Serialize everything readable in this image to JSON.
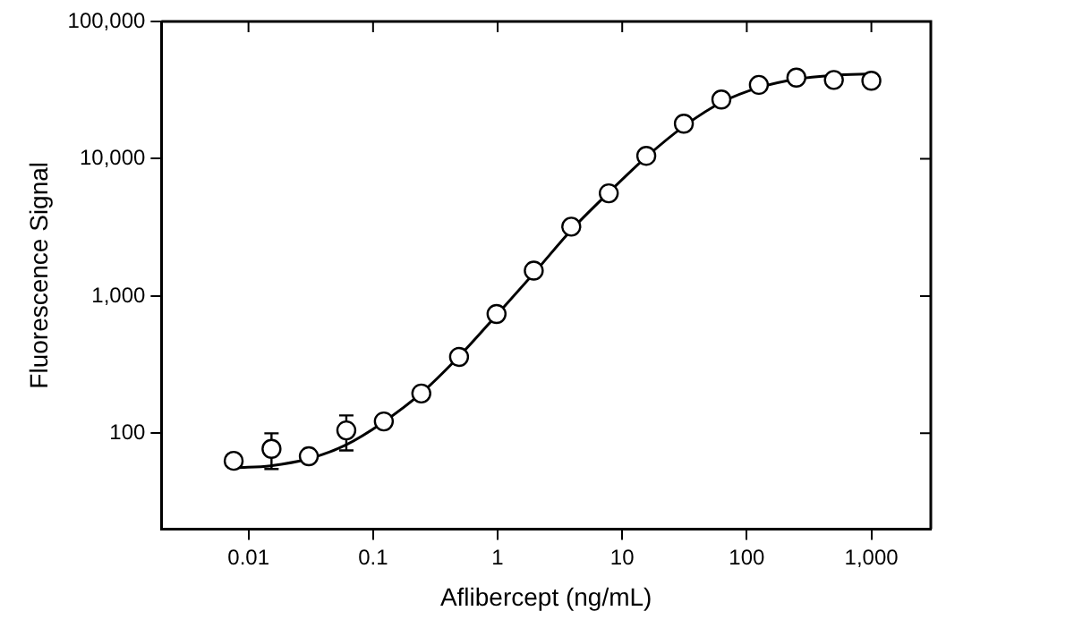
{
  "chart_data": {
    "type": "scatter",
    "xlabel": "Aflibercept (ng/mL)",
    "ylabel": "Fluorescence Signal",
    "log": "xy",
    "grid": false,
    "legend": false,
    "marker": "circle",
    "xlim": [
      0.002,
      3000
    ],
    "ylim": [
      20,
      100000
    ],
    "xticks": [
      0.01,
      0.1,
      1,
      10,
      100,
      {
        "value": 1000,
        "label": "1,000"
      }
    ],
    "yticks": [
      100,
      {
        "value": 1000,
        "label": "1,000"
      },
      {
        "value": 10000,
        "label": "10,000"
      },
      {
        "value": 100000,
        "label": "100,000"
      }
    ],
    "series": [
      {
        "color": "#000000",
        "x": [
          0.0076,
          0.0153,
          0.0305,
          0.061,
          0.122,
          0.244,
          0.49,
          0.98,
          1.95,
          3.9,
          7.8,
          15.6,
          31.25,
          62.5,
          125,
          250,
          500,
          1000
        ],
        "values": [
          63,
          77,
          68,
          105,
          122,
          195,
          360,
          740,
          1530,
          3200,
          5600,
          10500,
          18000,
          27000,
          34500,
          39000,
          37500,
          37000
        ],
        "errors": [
          null,
          [
            55,
            100
          ],
          null,
          [
            75,
            135
          ],
          null,
          null,
          null,
          null,
          null,
          null,
          null,
          null,
          null,
          null,
          null,
          null,
          null,
          null
        ]
      },
      {
        "type": "line",
        "color": "#000000",
        "marker": "none",
        "line_style": "solid",
        "x": [
          0.008,
          0.015,
          0.03,
          0.06,
          0.12,
          0.25,
          0.5,
          1,
          2,
          4,
          8,
          16,
          32,
          64,
          125,
          250,
          500,
          1000
        ],
        "values": [
          56,
          58,
          65,
          82,
          120,
          200,
          370,
          740,
          1500,
          3100,
          5800,
          10500,
          17500,
          26000,
          33000,
          38000,
          40500,
          41500
        ]
      }
    ]
  }
}
